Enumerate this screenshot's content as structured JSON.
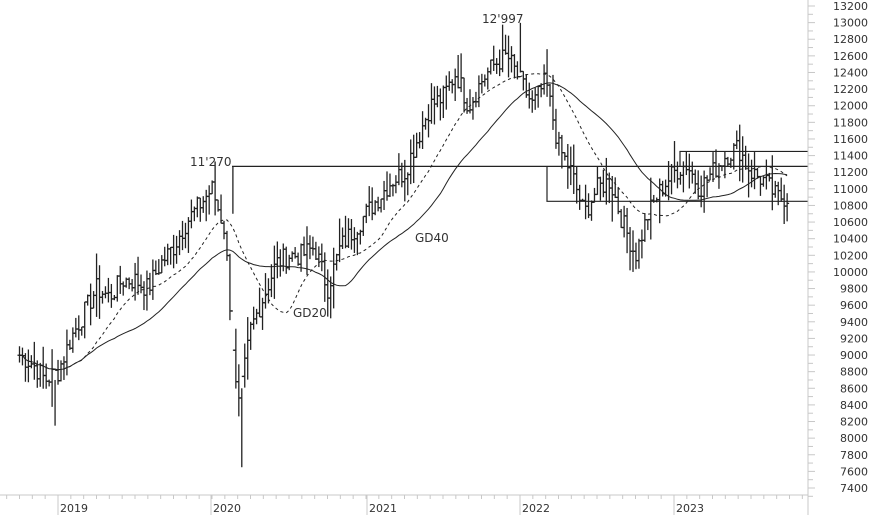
{
  "chart_data": {
    "type": "ohlc-bar",
    "title": "",
    "xlabel": "",
    "ylabel": "",
    "ylim": [
      7400,
      13200
    ],
    "grid": false,
    "y_ticks": [
      13200,
      13000,
      12800,
      12600,
      12400,
      12200,
      12000,
      11800,
      11600,
      11400,
      11200,
      11000,
      10800,
      10600,
      10400,
      10200,
      10000,
      9800,
      9600,
      9400,
      9200,
      9000,
      8800,
      8600,
      8400,
      8200,
      8000,
      7800,
      7600,
      7400
    ],
    "x_tick_labels": [
      "2019",
      "2020",
      "2021",
      "2022",
      "2023"
    ],
    "annotations": [
      {
        "text": "11'270",
        "value": 11270
      },
      {
        "text": "12'997",
        "value": 12997
      },
      {
        "text": "GD20",
        "note": "20-period moving average (dashed)"
      },
      {
        "text": "GD40",
        "note": "40-period moving average (solid)"
      }
    ],
    "horizontal_lines": [
      {
        "value": 11270,
        "from": "2020-02",
        "to": "end"
      },
      {
        "value": 11450,
        "from": "2023-01",
        "to": "end"
      },
      {
        "value": 10850,
        "from": "2022-01",
        "to": "end"
      }
    ],
    "series": [
      {
        "name": "Price (weekly close, approx.)",
        "x": [
          "2018-10",
          "2018-11",
          "2018-12",
          "2019-01",
          "2019-02",
          "2019-03",
          "2019-04",
          "2019-05",
          "2019-06",
          "2019-07",
          "2019-08",
          "2019-09",
          "2019-10",
          "2019-11",
          "2019-12",
          "2020-01",
          "2020-02",
          "2020-03",
          "2020-04",
          "2020-05",
          "2020-06",
          "2020-07",
          "2020-08",
          "2020-09",
          "2020-10",
          "2020-11",
          "2020-12",
          "2021-01",
          "2021-02",
          "2021-03",
          "2021-04",
          "2021-05",
          "2021-06",
          "2021-07",
          "2021-08",
          "2021-09",
          "2021-10",
          "2021-11",
          "2021-12",
          "2022-01",
          "2022-02",
          "2022-03",
          "2022-04",
          "2022-05",
          "2022-06",
          "2022-07",
          "2022-08",
          "2022-09",
          "2022-10",
          "2022-11",
          "2022-12",
          "2023-01",
          "2023-02",
          "2023-03",
          "2023-04",
          "2023-05",
          "2023-06",
          "2023-07",
          "2023-08",
          "2023-09",
          "2023-10"
        ],
        "values": [
          9000,
          8900,
          8700,
          8800,
          9200,
          9500,
          9800,
          9700,
          9900,
          9900,
          9800,
          10100,
          10300,
          10600,
          10800,
          11000,
          10500,
          8300,
          9300,
          9700,
          10100,
          10200,
          10200,
          10300,
          9800,
          10300,
          10500,
          10700,
          10900,
          11100,
          11200,
          11600,
          12000,
          12100,
          12400,
          12000,
          12300,
          12500,
          12600,
          12300,
          12000,
          12300,
          11500,
          11200,
          10700,
          11000,
          11100,
          10600,
          10200,
          10700,
          11000,
          11200,
          11300,
          11000,
          11200,
          11400,
          11500,
          11200,
          11100,
          10900,
          10900
        ]
      },
      {
        "name": "GD20",
        "style": "dashed"
      },
      {
        "name": "GD40",
        "style": "solid"
      }
    ]
  },
  "axis": {
    "year_labels": [
      "2019",
      "2020",
      "2021",
      "2022",
      "2023"
    ]
  },
  "labels": {
    "high_2020": "11'270",
    "high_2021": "12'997",
    "ma20": "GD20",
    "ma40": "GD40"
  }
}
